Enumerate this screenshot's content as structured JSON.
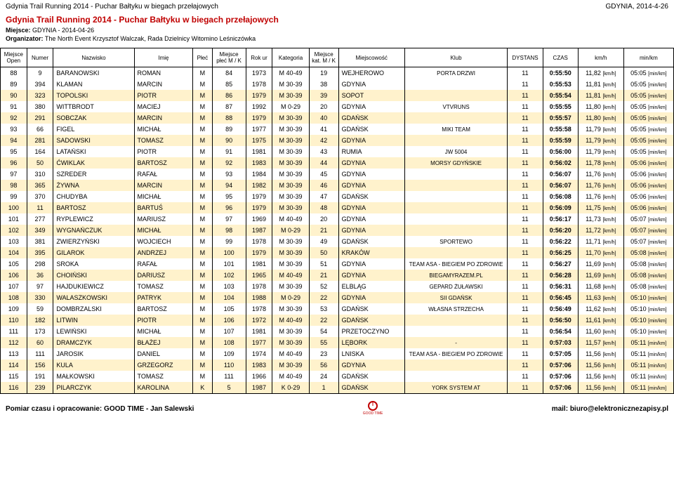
{
  "header": {
    "left": "Gdynia Trail Running 2014 - Puchar Bałtyku w biegach przełajowych",
    "right": "GDYNIA, 2014-4-26"
  },
  "title": {
    "main": "Gdynia Trail Running 2014 - Puchar Bałtyku w biegach przełajowych",
    "miejsce_label": "Miejsce:",
    "miejsce_value": "GDYNIA - 2014-04-26",
    "org_label": "Organizator:",
    "org_value": "The North Event Krzysztof Walczak, Rada Dzielnicy Witomino Leśniczówka"
  },
  "columns": [
    "Miejsce Open",
    "Numer",
    "Nazwisko",
    "Imię",
    "Płeć",
    "Miejsce płeć M / K",
    "Rok ur",
    "Kategoria",
    "Miejsce kat. M / K",
    "Miejscowość",
    "Klub",
    "DYSTANS",
    "CZAS",
    "km/h",
    "min/km"
  ],
  "highlight_color": "#fff2cc",
  "rows": [
    {
      "hl": false,
      "open": "88",
      "numer": "9",
      "nazw": "BARANOWSKI",
      "imie": "ROMAN",
      "plec": "M",
      "mplec": "84",
      "rok": "1973",
      "kat": "M 40-49",
      "mkat": "19",
      "miejscow": "WEJHEROWO",
      "klub": "PORTA DRZWI",
      "dyst": "11",
      "czas": "0:55:50",
      "kmh": "11,82",
      "minkm": "05:05"
    },
    {
      "hl": false,
      "open": "89",
      "numer": "394",
      "nazw": "KLAMAN",
      "imie": "MARCIN",
      "plec": "M",
      "mplec": "85",
      "rok": "1978",
      "kat": "M 30-39",
      "mkat": "38",
      "miejscow": "GDYNIA",
      "klub": "",
      "dyst": "11",
      "czas": "0:55:53",
      "kmh": "11,81",
      "minkm": "05:05"
    },
    {
      "hl": true,
      "open": "90",
      "numer": "323",
      "nazw": "TOPOLSKI",
      "imie": "PIOTR",
      "plec": "M",
      "mplec": "86",
      "rok": "1979",
      "kat": "M 30-39",
      "mkat": "39",
      "miejscow": "SOPOT",
      "klub": "",
      "dyst": "11",
      "czas": "0:55:54",
      "kmh": "11,81",
      "minkm": "05:05"
    },
    {
      "hl": false,
      "open": "91",
      "numer": "380",
      "nazw": "WITTBRODT",
      "imie": "MACIEJ",
      "plec": "M",
      "mplec": "87",
      "rok": "1992",
      "kat": "M 0-29",
      "mkat": "20",
      "miejscow": "GDYNIA",
      "klub": "VTVRUNS",
      "dyst": "11",
      "czas": "0:55:55",
      "kmh": "11,80",
      "minkm": "05:05"
    },
    {
      "hl": true,
      "open": "92",
      "numer": "291",
      "nazw": "SOBCZAK",
      "imie": "MARCIN",
      "plec": "M",
      "mplec": "88",
      "rok": "1979",
      "kat": "M 30-39",
      "mkat": "40",
      "miejscow": "GDAŃSK",
      "klub": "",
      "dyst": "11",
      "czas": "0:55:57",
      "kmh": "11,80",
      "minkm": "05:05"
    },
    {
      "hl": false,
      "open": "93",
      "numer": "66",
      "nazw": "FIGEL",
      "imie": "MICHAŁ",
      "plec": "M",
      "mplec": "89",
      "rok": "1977",
      "kat": "M 30-39",
      "mkat": "41",
      "miejscow": "GDAŃSK",
      "klub": "MIKI TEAM",
      "dyst": "11",
      "czas": "0:55:58",
      "kmh": "11,79",
      "minkm": "05:05"
    },
    {
      "hl": true,
      "open": "94",
      "numer": "281",
      "nazw": "SADOWSKI",
      "imie": "TOMASZ",
      "plec": "M",
      "mplec": "90",
      "rok": "1975",
      "kat": "M 30-39",
      "mkat": "42",
      "miejscow": "GDYNIA",
      "klub": "",
      "dyst": "11",
      "czas": "0:55:59",
      "kmh": "11,79",
      "minkm": "05:05"
    },
    {
      "hl": false,
      "open": "95",
      "numer": "164",
      "nazw": "LATAŃSKI",
      "imie": "PIOTR",
      "plec": "M",
      "mplec": "91",
      "rok": "1981",
      "kat": "M 30-39",
      "mkat": "43",
      "miejscow": "RUMIA",
      "klub": "JW 5004",
      "dyst": "11",
      "czas": "0:56:00",
      "kmh": "11,79",
      "minkm": "05:05"
    },
    {
      "hl": true,
      "open": "96",
      "numer": "50",
      "nazw": "ĆWIKLAK",
      "imie": "BARTOSZ",
      "plec": "M",
      "mplec": "92",
      "rok": "1983",
      "kat": "M 30-39",
      "mkat": "44",
      "miejscow": "GDYNIA",
      "klub": "MORSY GDYŃSKIE",
      "dyst": "11",
      "czas": "0:56:02",
      "kmh": "11,78",
      "minkm": "05:06"
    },
    {
      "hl": false,
      "open": "97",
      "numer": "310",
      "nazw": "SZREDER",
      "imie": "RAFAŁ",
      "plec": "M",
      "mplec": "93",
      "rok": "1984",
      "kat": "M 30-39",
      "mkat": "45",
      "miejscow": "GDYNIA",
      "klub": "",
      "dyst": "11",
      "czas": "0:56:07",
      "kmh": "11,76",
      "minkm": "05:06"
    },
    {
      "hl": true,
      "open": "98",
      "numer": "365",
      "nazw": "ŻYWNA",
      "imie": "MARCIN",
      "plec": "M",
      "mplec": "94",
      "rok": "1982",
      "kat": "M 30-39",
      "mkat": "46",
      "miejscow": "GDYNIA",
      "klub": "",
      "dyst": "11",
      "czas": "0:56:07",
      "kmh": "11,76",
      "minkm": "05:06"
    },
    {
      "hl": false,
      "open": "99",
      "numer": "370",
      "nazw": "CHUDYBA",
      "imie": "MICHAŁ",
      "plec": "M",
      "mplec": "95",
      "rok": "1979",
      "kat": "M 30-39",
      "mkat": "47",
      "miejscow": "GDAŃSK",
      "klub": "",
      "dyst": "11",
      "czas": "0:56:08",
      "kmh": "11,76",
      "minkm": "05:06"
    },
    {
      "hl": true,
      "open": "100",
      "numer": "11",
      "nazw": "BARTOSZ",
      "imie": "BARTUŚ",
      "plec": "M",
      "mplec": "96",
      "rok": "1979",
      "kat": "M 30-39",
      "mkat": "48",
      "miejscow": "GDYNIA",
      "klub": "",
      "dyst": "11",
      "czas": "0:56:09",
      "kmh": "11,75",
      "minkm": "05:06"
    },
    {
      "hl": false,
      "open": "101",
      "numer": "277",
      "nazw": "RYPLEWICZ",
      "imie": "MARIUSZ",
      "plec": "M",
      "mplec": "97",
      "rok": "1969",
      "kat": "M 40-49",
      "mkat": "20",
      "miejscow": "GDYNIA",
      "klub": "",
      "dyst": "11",
      "czas": "0:56:17",
      "kmh": "11,73",
      "minkm": "05:07"
    },
    {
      "hl": true,
      "open": "102",
      "numer": "349",
      "nazw": "WYGNAŃCZUK",
      "imie": "MICHAŁ",
      "plec": "M",
      "mplec": "98",
      "rok": "1987",
      "kat": "M 0-29",
      "mkat": "21",
      "miejscow": "GDYNIA",
      "klub": "",
      "dyst": "11",
      "czas": "0:56:20",
      "kmh": "11,72",
      "minkm": "05:07"
    },
    {
      "hl": false,
      "open": "103",
      "numer": "381",
      "nazw": "ZWIERZYŃSKI",
      "imie": "WOJCIECH",
      "plec": "M",
      "mplec": "99",
      "rok": "1978",
      "kat": "M 30-39",
      "mkat": "49",
      "miejscow": "GDAŃSK",
      "klub": "SPORTEWO",
      "dyst": "11",
      "czas": "0:56:22",
      "kmh": "11,71",
      "minkm": "05:07"
    },
    {
      "hl": true,
      "open": "104",
      "numer": "395",
      "nazw": "GILAROK",
      "imie": "ANDRZEJ",
      "plec": "M",
      "mplec": "100",
      "rok": "1979",
      "kat": "M 30-39",
      "mkat": "50",
      "miejscow": "KRAKÓW",
      "klub": "",
      "dyst": "11",
      "czas": "0:56:25",
      "kmh": "11,70",
      "minkm": "05:08"
    },
    {
      "hl": false,
      "open": "105",
      "numer": "298",
      "nazw": "SROKA",
      "imie": "RAFAŁ",
      "plec": "M",
      "mplec": "101",
      "rok": "1981",
      "kat": "M 30-39",
      "mkat": "51",
      "miejscow": "GDYNIA",
      "klub": "TEAM ASA - BIEGIEM PO ZDROWIE",
      "dyst": "11",
      "czas": "0:56:27",
      "kmh": "11,69",
      "minkm": "05:08"
    },
    {
      "hl": true,
      "open": "106",
      "numer": "36",
      "nazw": "CHOIŃSKI",
      "imie": "DARIUSZ",
      "plec": "M",
      "mplec": "102",
      "rok": "1965",
      "kat": "M 40-49",
      "mkat": "21",
      "miejscow": "GDYNIA",
      "klub": "BIEGAMYRAZEM.PL",
      "dyst": "11",
      "czas": "0:56:28",
      "kmh": "11,69",
      "minkm": "05:08"
    },
    {
      "hl": false,
      "open": "107",
      "numer": "97",
      "nazw": "HAJDUKIEWICZ",
      "imie": "TOMASZ",
      "plec": "M",
      "mplec": "103",
      "rok": "1978",
      "kat": "M 30-39",
      "mkat": "52",
      "miejscow": "ELBLĄG",
      "klub": "GEPARD ŻUŁAWSKI",
      "dyst": "11",
      "czas": "0:56:31",
      "kmh": "11,68",
      "minkm": "05:08"
    },
    {
      "hl": true,
      "open": "108",
      "numer": "330",
      "nazw": "WALASZKOWSKI",
      "imie": "PATRYK",
      "plec": "M",
      "mplec": "104",
      "rok": "1988",
      "kat": "M 0-29",
      "mkat": "22",
      "miejscow": "GDYNIA",
      "klub": "SII GDAŃSK",
      "dyst": "11",
      "czas": "0:56:45",
      "kmh": "11,63",
      "minkm": "05:10"
    },
    {
      "hl": false,
      "open": "109",
      "numer": "59",
      "nazw": "DOMBRZALSKI",
      "imie": "BARTOSZ",
      "plec": "M",
      "mplec": "105",
      "rok": "1978",
      "kat": "M 30-39",
      "mkat": "53",
      "miejscow": "GDAŃSK",
      "klub": "WŁASNA STRZECHA",
      "dyst": "11",
      "czas": "0:56:49",
      "kmh": "11,62",
      "minkm": "05:10"
    },
    {
      "hl": true,
      "open": "110",
      "numer": "182",
      "nazw": "LITWIN",
      "imie": "PIOTR",
      "plec": "M",
      "mplec": "106",
      "rok": "1972",
      "kat": "M 40-49",
      "mkat": "22",
      "miejscow": "GDAŃSK",
      "klub": "",
      "dyst": "11",
      "czas": "0:56:50",
      "kmh": "11,61",
      "minkm": "05:10"
    },
    {
      "hl": false,
      "open": "111",
      "numer": "173",
      "nazw": "LEWIŃSKI",
      "imie": "MICHAŁ",
      "plec": "M",
      "mplec": "107",
      "rok": "1981",
      "kat": "M 30-39",
      "mkat": "54",
      "miejscow": "PRZETOCZYNO",
      "klub": "",
      "dyst": "11",
      "czas": "0:56:54",
      "kmh": "11,60",
      "minkm": "05:10"
    },
    {
      "hl": true,
      "open": "112",
      "numer": "60",
      "nazw": "DRAMCZYK",
      "imie": "BŁAŻEJ",
      "plec": "M",
      "mplec": "108",
      "rok": "1977",
      "kat": "M 30-39",
      "mkat": "55",
      "miejscow": "LĘBORK",
      "klub": "-",
      "dyst": "11",
      "czas": "0:57:03",
      "kmh": "11,57",
      "minkm": "05:11"
    },
    {
      "hl": false,
      "open": "113",
      "numer": "111",
      "nazw": "JAROSIK",
      "imie": "DANIEL",
      "plec": "M",
      "mplec": "109",
      "rok": "1974",
      "kat": "M 40-49",
      "mkat": "23",
      "miejscow": "LNISKA",
      "klub": "TEAM ASA - BIEGIEM PO ZDROWIE",
      "dyst": "11",
      "czas": "0:57:05",
      "kmh": "11,56",
      "minkm": "05:11"
    },
    {
      "hl": true,
      "open": "114",
      "numer": "156",
      "nazw": "KULA",
      "imie": "GRZEGORZ",
      "plec": "M",
      "mplec": "110",
      "rok": "1983",
      "kat": "M 30-39",
      "mkat": "56",
      "miejscow": "GDYNIA",
      "klub": "",
      "dyst": "11",
      "czas": "0:57:06",
      "kmh": "11,56",
      "minkm": "05:11"
    },
    {
      "hl": false,
      "open": "115",
      "numer": "191",
      "nazw": "MAŁKOWSKI",
      "imie": "TOMASZ",
      "plec": "M",
      "mplec": "111",
      "rok": "1966",
      "kat": "M 40-49",
      "mkat": "24",
      "miejscow": "GDAŃSK",
      "klub": "",
      "dyst": "11",
      "czas": "0:57:06",
      "kmh": "11,56",
      "minkm": "05:11"
    },
    {
      "hl": true,
      "open": "116",
      "numer": "239",
      "nazw": "PILARCZYK",
      "imie": "KAROLINA",
      "plec": "K",
      "mplec": "5",
      "rok": "1987",
      "kat": "K 0-29",
      "mkat": "1",
      "miejscow": "GDAŃSK",
      "klub": "YORK SYSTEM AT",
      "dyst": "11",
      "czas": "0:57:06",
      "kmh": "11,56",
      "minkm": "05:11"
    }
  ],
  "units": {
    "kmh": "[km/h]",
    "minkm": "[min/km]"
  },
  "footer": {
    "left": "Pomiar czasu i opracowanie: GOOD TIME - Jan Salewski",
    "logo_caption": "GOOD TIME",
    "right": "mail: biuro@elektronicznezapisy.pl"
  }
}
